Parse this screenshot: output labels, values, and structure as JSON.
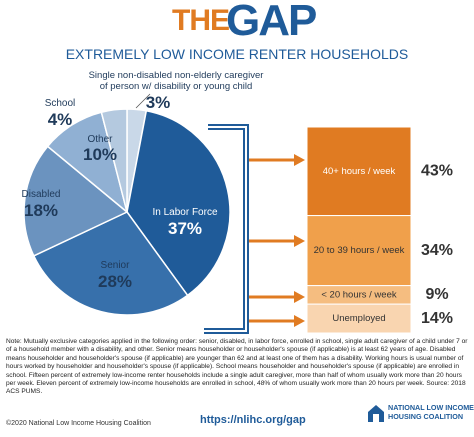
{
  "header": {
    "title_the": "THE",
    "title_gap": "GAP",
    "subtitle": "EXTREMELY LOW INCOME RENTER HOUSEHOLDS"
  },
  "chart_data": [
    {
      "type": "pie",
      "categories": [
        "Single non-disabled non-elderly caregiver of person w/ disability or young child",
        "In Labor Force",
        "Senior",
        "Disabled",
        "Other",
        "School"
      ],
      "values": [
        3,
        37,
        28,
        18,
        10,
        4
      ],
      "value_labels": [
        "3%",
        "37%",
        "28%",
        "18%",
        "10%",
        "4%"
      ],
      "colors": [
        "#c9d8e8",
        "#1f5b99",
        "#3770ab",
        "#6b93bf",
        "#90b0d3",
        "#b4c9df"
      ]
    },
    {
      "type": "bar",
      "stacked": true,
      "series": [
        {
          "name": "40+ hours / week",
          "color": "#e07b22",
          "values": [
            43
          ],
          "value_labels": [
            "43%"
          ]
        },
        {
          "name": "20 to 39 hours / week",
          "color": "#f0a04b",
          "values": [
            34
          ],
          "value_labels": [
            "34%"
          ]
        },
        {
          "name": "< 20 hours / week",
          "color": "#f5bd80",
          "values": [
            9
          ],
          "value_labels": [
            "9%"
          ]
        },
        {
          "name": "Unemployed",
          "color": "#f9d5b0",
          "values": [
            14
          ],
          "value_labels": [
            "14%"
          ]
        }
      ]
    }
  ],
  "footer": {
    "note": "Note: Mutually exclusive categories applied in the following order: senior, disabled, in labor force, enrolled in school, single adult caregiver of a child under 7 or of a household member with a disability, and other. Senior means householder or householder's spouse (if applicable) is at least 62 years of age. Disabled means householder and householder's spouse (if applicable) are younger than 62 and at least one of them has a disability. Working hours is usual number of hours worked by householder and householder's spouse (if applicable). School means householder and householder's spouse (if applicable) are enrolled in school. Fifteen percent of extremely low-income renter households include a single adult caregiver, more than half of whom usually work more than 20 hours per week. Eleven percent of extremely low-income households are enrolled in school, 48% of whom usually work more than 20 hours per week. Source: 2018 ACS PUMS.",
    "url": "https://nlihc.org/gap",
    "copyright": "©2020 National Low Income Housing Coalition",
    "logo": [
      "NATIONAL LOW INCOME",
      "HOUSING COALITION"
    ]
  }
}
